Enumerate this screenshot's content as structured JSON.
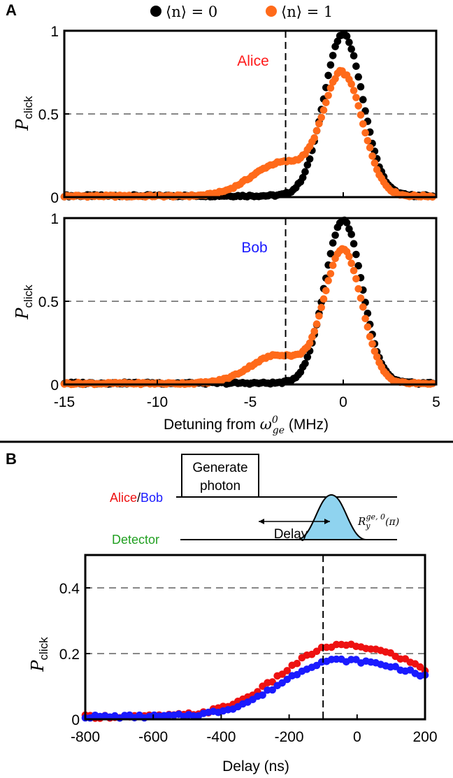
{
  "panels": {
    "a": "A",
    "b": "B"
  },
  "legend": {
    "items": [
      {
        "label": "⟨n⟩ = 0",
        "color": "#000000"
      },
      {
        "label": "⟨n⟩ = 1",
        "color": "#ff6a1a"
      }
    ]
  },
  "ylabel_a": {
    "main": "P",
    "sub": "click"
  },
  "xlabel_a": {
    "text": "Detuning from ",
    "sym": "ω",
    "sup": "0",
    "sub": "ge",
    "unit": " (MHz)"
  },
  "ylabel_b": {
    "main": "P",
    "sub": "click"
  },
  "xlabel_b": "Delay (ns)",
  "schematic": {
    "box_line1": "Generate",
    "box_line2": "photon",
    "row1_label_alice": "Alice",
    "row1_sep": "/",
    "row1_label_bob": "Bob",
    "row2_label": "Detector",
    "delay_label": "Delay",
    "pulse_label": "R",
    "pulse_sub": "y",
    "pulse_sup": "ge, 0",
    "pulse_arg": "(π)",
    "colors": {
      "alice": "#ee1111",
      "bob": "#1a1aff",
      "detector": "#22a022",
      "pulse": "#8fd3ef"
    }
  },
  "chart_data": [
    {
      "id": "A-Alice",
      "type": "scatter",
      "annotation": "Alice",
      "annotation_color": "#ff1a1a",
      "xlim": [
        -15,
        5
      ],
      "ylim": [
        0,
        1
      ],
      "xticks": [
        -15,
        -10,
        -5,
        0,
        5
      ],
      "xtick_labels": [
        "-15",
        "-10",
        "-5",
        "0",
        "5"
      ],
      "yticks": [
        0,
        0.5,
        1
      ],
      "ytick_labels": [
        "0",
        "0.5",
        "1"
      ],
      "hlines_dashed": [
        0.5
      ],
      "vline_dashed": -3.1,
      "series": [
        {
          "name": "⟨n⟩ = 0",
          "color": "#000000",
          "model": {
            "amp": 0.97,
            "center": 0.0,
            "sigma": 1.05,
            "shoulder_amp": 0,
            "base": 0.008
          }
        },
        {
          "name": "⟨n⟩ = 1",
          "color": "#ff6a1a",
          "model": {
            "amp": 0.73,
            "center": 0.0,
            "sigma": 1.05,
            "shoulder_amp": 0.2,
            "shoulder_center": -3.3,
            "shoulder_sigma": 1.6,
            "base": 0.006
          }
        }
      ],
      "x_range_sampled": [
        -15,
        4.8
      ],
      "n_points": 160
    },
    {
      "id": "A-Bob",
      "type": "scatter",
      "annotation": "Bob",
      "annotation_color": "#1a1aff",
      "xlim": [
        -15,
        5
      ],
      "ylim": [
        0,
        1
      ],
      "xticks": [
        -15,
        -10,
        -5,
        0,
        5
      ],
      "xtick_labels": [
        "-15",
        "-10",
        "-5",
        "0",
        "5"
      ],
      "yticks": [
        0,
        0.5,
        1
      ],
      "ytick_labels": [
        "0",
        "0.5",
        "1"
      ],
      "hlines_dashed": [
        0.5
      ],
      "vline_dashed": -3.1,
      "series": [
        {
          "name": "⟨n⟩ = 0",
          "color": "#000000",
          "model": {
            "amp": 0.98,
            "center": 0.0,
            "sigma": 1.0,
            "shoulder_amp": 0,
            "base": 0.008
          }
        },
        {
          "name": "⟨n⟩ = 1",
          "color": "#ff6a1a",
          "model": {
            "amp": 0.8,
            "center": 0.0,
            "sigma": 1.0,
            "shoulder_amp": 0.17,
            "shoulder_center": -3.5,
            "shoulder_sigma": 1.5,
            "base": 0.006
          }
        }
      ],
      "x_range_sampled": [
        -15,
        4.8
      ],
      "n_points": 160
    },
    {
      "id": "B",
      "type": "scatter",
      "xlim": [
        -800,
        200
      ],
      "ylim": [
        0,
        0.5
      ],
      "xticks": [
        -800,
        -600,
        -400,
        -200,
        0,
        200
      ],
      "xtick_labels": [
        "-800",
        "-600",
        "-400",
        "-200",
        "0",
        "200"
      ],
      "yticks": [
        0,
        0.2,
        0.4
      ],
      "ytick_labels": [
        "0",
        "0.2",
        "0.4"
      ],
      "hlines_dashed": [
        0.2,
        0.4
      ],
      "vline_dashed": -100,
      "series": [
        {
          "name": "Alice",
          "color": "#ee1111",
          "model": {
            "peak": 0.225,
            "center": -50,
            "width_left": 170,
            "right_end": 0.15,
            "base": 0.008
          }
        },
        {
          "name": "Bob",
          "color": "#1a1aff",
          "model": {
            "peak": 0.18,
            "center": -60,
            "width_left": 160,
            "right_end": 0.13,
            "base": 0.008
          }
        }
      ],
      "x_range_sampled": [
        -800,
        200
      ],
      "n_points": 70
    }
  ]
}
